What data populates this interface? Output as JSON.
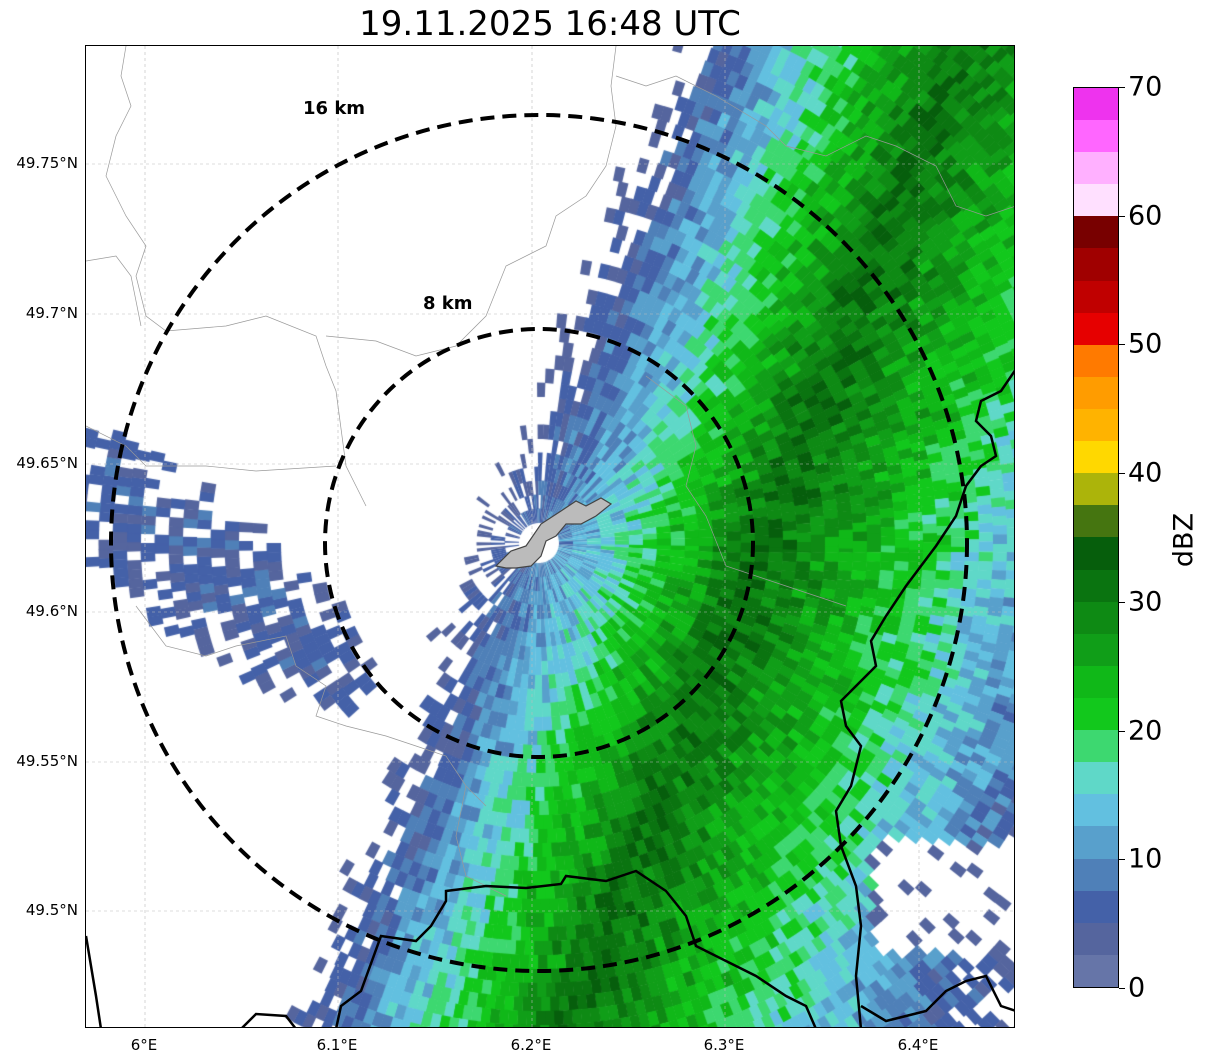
{
  "title": "19.11.2025 16:48 UTC",
  "x_ticks": [
    "6°E",
    "6.1°E",
    "6.2°E",
    "6.3°E",
    "6.4°E"
  ],
  "y_ticks": [
    "49.75°N",
    "49.7°N",
    "49.65°N",
    "49.6°N",
    "49.55°N",
    "49.5°N"
  ],
  "rings": {
    "inner": "8 km",
    "outer": "16 km"
  },
  "colorbar": {
    "label": "dBZ",
    "ticks": [
      "0",
      "10",
      "20",
      "30",
      "40",
      "50",
      "60",
      "70"
    ],
    "range": [
      0,
      70
    ],
    "step": 2.5,
    "colors": [
      "#6675a8",
      "#55659e",
      "#4461a8",
      "#4f80b8",
      "#58a0cc",
      "#62c0e0",
      "#5fd8c8",
      "#3dd870",
      "#12c81c",
      "#10b818",
      "#109e18",
      "#0e8a14",
      "#0a7410",
      "#065e0c",
      "#457510",
      "#acb40a",
      "#ffd800",
      "#ffb300",
      "#ff9c00",
      "#ff7a00",
      "#e60000",
      "#c00000",
      "#a00000",
      "#780000",
      "#ffe0ff",
      "#ffb0ff",
      "#ff66ff",
      "#ee33ee"
    ]
  }
}
